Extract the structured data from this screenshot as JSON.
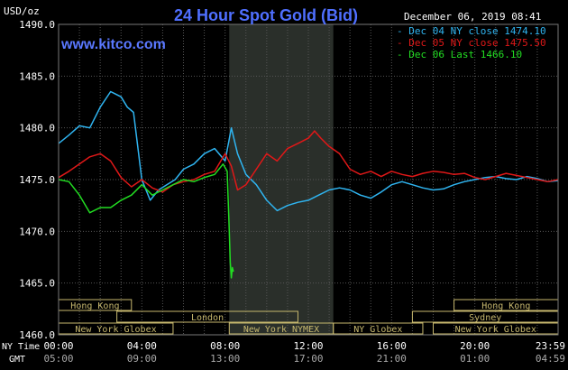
{
  "header": {
    "title": "24 Hour Spot Gold (Bid)",
    "units": "USD/oz",
    "timestamp": "December 06, 2019 08:41",
    "watermark": "www.kitco.com"
  },
  "colors": {
    "background": "#000000",
    "title": "#4f6fff",
    "watermark": "#5a78ff",
    "text": "#ffffff",
    "grid": "#555555",
    "session_shade": "#2a2f2a",
    "market_box": "#c7b86e",
    "dec04": "#2fb4f0",
    "dec05": "#e01818",
    "dec06": "#22dd22"
  },
  "chart_data": {
    "type": "line",
    "title": "24 Hour Spot Gold (Bid)",
    "ylabel": "USD/oz",
    "ylim": [
      1460,
      1490
    ],
    "xlim": [
      0,
      24
    ],
    "y_ticks": [
      "1490.0",
      "1485.0",
      "1480.0",
      "1475.0",
      "1470.0",
      "1465.0",
      "1460.0"
    ],
    "y_tick_values": [
      1490,
      1485,
      1480,
      1475,
      1470,
      1465,
      1460
    ],
    "x_ticks_ny": [
      "00:00",
      "04:00",
      "08:00",
      "12:00",
      "16:00",
      "20:00",
      "23:59"
    ],
    "x_ticks_gmt": [
      "05:00",
      "09:00",
      "13:00",
      "17:00",
      "21:00",
      "01:00",
      "04:59"
    ],
    "x_tick_hours": [
      0,
      4,
      8,
      12,
      16,
      20,
      24
    ],
    "x_row_labels": [
      "NY Time",
      "GMT"
    ],
    "grid": true,
    "legend_position": "top-right",
    "shaded_session_hours": [
      8.2,
      13.2
    ],
    "series": [
      {
        "name": "Dec 04 NY close 1474.10",
        "color": "#2fb4f0",
        "x": [
          0,
          0.5,
          1.0,
          1.5,
          2.0,
          2.5,
          3.0,
          3.3,
          3.6,
          4.0,
          4.4,
          4.8,
          5.2,
          5.6,
          6.0,
          6.5,
          7.0,
          7.5,
          8.0,
          8.3,
          8.6,
          9.0,
          9.5,
          10.0,
          10.5,
          11.0,
          11.5,
          12.0,
          12.5,
          13.0,
          13.5,
          14.0,
          14.5,
          15.0,
          15.5,
          16.0,
          16.5,
          17.0,
          17.5,
          18.0,
          18.5,
          19.0,
          19.5,
          20.0,
          20.5,
          21.0,
          21.5,
          22.0,
          22.5,
          23.0,
          23.5,
          24.0
        ],
        "y": [
          1478.5,
          1479.3,
          1480.2,
          1480.0,
          1482.0,
          1483.5,
          1483.0,
          1482.0,
          1481.5,
          1475.0,
          1473.0,
          1474.0,
          1474.5,
          1475.0,
          1476.0,
          1476.5,
          1477.5,
          1478.0,
          1476.8,
          1480.0,
          1477.5,
          1475.5,
          1474.5,
          1473.0,
          1472.0,
          1472.5,
          1472.8,
          1473.0,
          1473.5,
          1474.0,
          1474.2,
          1474.0,
          1473.5,
          1473.2,
          1473.8,
          1474.5,
          1474.8,
          1474.5,
          1474.2,
          1474.0,
          1474.1,
          1474.5,
          1474.8,
          1475.0,
          1475.2,
          1475.3,
          1475.1,
          1475.0,
          1475.3,
          1475.1,
          1474.8,
          1474.9
        ]
      },
      {
        "name": "Dec 05 NY close 1475.50",
        "color": "#e01818",
        "x": [
          0,
          0.5,
          1.0,
          1.5,
          2.0,
          2.5,
          3.0,
          3.5,
          4.0,
          4.5,
          5.0,
          5.5,
          6.0,
          6.5,
          7.0,
          7.5,
          8.0,
          8.3,
          8.6,
          9.0,
          9.5,
          10.0,
          10.5,
          11.0,
          11.5,
          12.0,
          12.3,
          12.6,
          13.0,
          13.5,
          14.0,
          14.5,
          15.0,
          15.5,
          16.0,
          16.5,
          17.0,
          17.5,
          18.0,
          18.5,
          19.0,
          19.5,
          20.0,
          20.5,
          21.0,
          21.5,
          22.0,
          22.5,
          23.0,
          23.5,
          24.0
        ],
        "y": [
          1475.2,
          1475.8,
          1476.5,
          1477.2,
          1477.5,
          1476.8,
          1475.2,
          1474.3,
          1475.0,
          1474.2,
          1473.8,
          1474.5,
          1474.8,
          1475.0,
          1475.5,
          1475.8,
          1477.5,
          1476.3,
          1474.0,
          1474.5,
          1476.0,
          1477.5,
          1476.8,
          1478.0,
          1478.5,
          1479.0,
          1479.7,
          1479.0,
          1478.2,
          1477.5,
          1476.0,
          1475.5,
          1475.8,
          1475.3,
          1475.8,
          1475.5,
          1475.3,
          1475.6,
          1475.8,
          1475.7,
          1475.5,
          1475.6,
          1475.2,
          1475.0,
          1475.3,
          1475.6,
          1475.4,
          1475.2,
          1475.0,
          1474.8,
          1475.0
        ]
      },
      {
        "name": "Dec 06 Last 1466.10",
        "color": "#22dd22",
        "x": [
          0,
          0.5,
          1.0,
          1.5,
          2.0,
          2.5,
          3.0,
          3.5,
          4.0,
          4.5,
          5.0,
          5.5,
          6.0,
          6.5,
          7.0,
          7.5,
          7.9,
          8.1,
          8.2,
          8.25,
          8.3,
          8.35,
          8.4
        ],
        "y": [
          1475.0,
          1474.8,
          1473.5,
          1471.8,
          1472.3,
          1472.3,
          1473.0,
          1473.5,
          1474.5,
          1473.5,
          1474.0,
          1474.5,
          1475.0,
          1474.8,
          1475.2,
          1475.5,
          1476.5,
          1475.8,
          1470.0,
          1467.0,
          1465.5,
          1466.5,
          1466.1
        ]
      }
    ],
    "market_sessions": [
      {
        "label": "Hong Kong",
        "start": 0.0,
        "end": 3.5,
        "row": 1
      },
      {
        "label": "London",
        "start": 2.8,
        "end": 11.5,
        "row": 2
      },
      {
        "label": "New York Globex",
        "start": 0.0,
        "end": 5.5,
        "row": 3
      },
      {
        "label": "New York NYMEX",
        "start": 8.2,
        "end": 13.2,
        "row": 3
      },
      {
        "label": "NY Globex",
        "start": 13.2,
        "end": 17.5,
        "row": 3
      },
      {
        "label": "Hong Kong",
        "start": 19.0,
        "end": 24.0,
        "row": 1
      },
      {
        "label": "Sydney",
        "start": 17.0,
        "end": 24.0,
        "row": 2
      },
      {
        "label": "New York Globex",
        "start": 18.0,
        "end": 24.0,
        "row": 3
      }
    ]
  }
}
